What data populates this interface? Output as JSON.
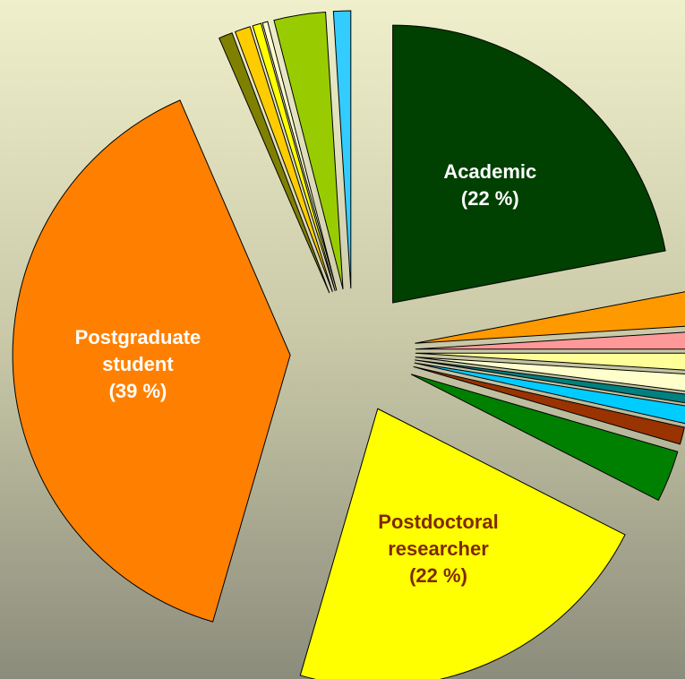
{
  "chart_data": {
    "type": "pie",
    "categories": [
      "Academic",
      null,
      null,
      null,
      null,
      null,
      null,
      null,
      null,
      "Postdoctoral researcher",
      "Postgraduate student",
      null,
      null,
      null,
      null,
      null,
      null
    ],
    "values": [
      22,
      2,
      1,
      1,
      1,
      0.5,
      1,
      1,
      3,
      22,
      39,
      0.8,
      0.9,
      0.5,
      0.3,
      3,
      1
    ],
    "value_labels": [
      "(22 %)",
      null,
      null,
      null,
      null,
      null,
      null,
      null,
      null,
      "(22 %)",
      "(39 %)",
      null,
      null,
      null,
      null,
      null,
      null
    ],
    "colors": [
      "#004000",
      "#ff9900",
      "#ff9999",
      "#ffff99",
      "#ffffcc",
      "#008080",
      "#00ccff",
      "#993300",
      "#008000",
      "#ffff00",
      "#ff8000",
      "#808000",
      "#ffcc00",
      "#ffff00",
      "#ffffcc",
      "#99cc00",
      "#33ccff"
    ]
  }
}
